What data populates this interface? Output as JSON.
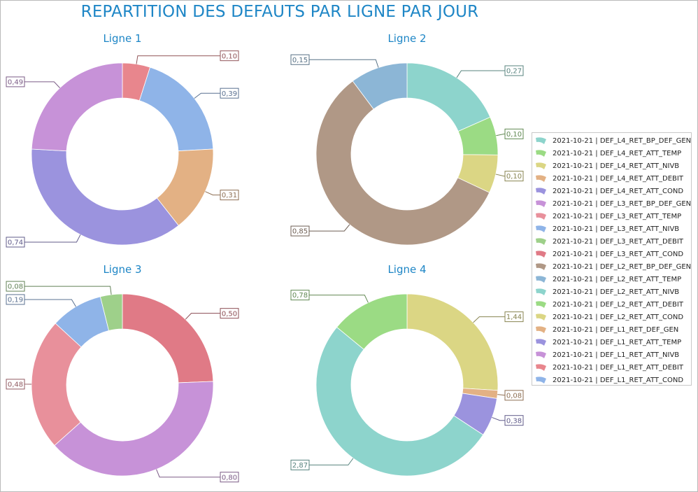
{
  "title": "REPARTITION DES DEFAUTS PAR LIGNE PAR JOUR",
  "chart_data": [
    {
      "type": "pie",
      "donut": true,
      "title": "Ligne 1",
      "start": "top",
      "direction": "clockwise",
      "slices": [
        {
          "label": "2021-10-21 | DEF_L1_RET_ATT_DEBIT",
          "value": 0.1,
          "display": "0,10",
          "color": "#e8868d"
        },
        {
          "label": "2021-10-21 | DEF_L1_RET_ATT_COND",
          "value": 0.39,
          "display": "0,39",
          "color": "#8fb4e8"
        },
        {
          "label": "2021-10-21 | DEF_L1_RET_DEF_GEN",
          "value": 0.31,
          "display": "0,31",
          "color": "#e3b184"
        },
        {
          "label": "2021-10-21 | DEF_L1_RET_ATT_TEMP",
          "value": 0.74,
          "display": "0,74",
          "color": "#9b93de"
        },
        {
          "label": "2021-10-21 | DEF_L1_RET_ATT_NIVB",
          "value": 0.49,
          "display": "0,49",
          "color": "#c792d8"
        }
      ]
    },
    {
      "type": "pie",
      "donut": true,
      "title": "Ligne 2",
      "start": "top",
      "direction": "clockwise",
      "slices": [
        {
          "label": "2021-10-21 | DEF_L2_RET_ATT_NIVB",
          "value": 0.27,
          "display": "0,27",
          "color": "#8dd4cc"
        },
        {
          "label": "2021-10-21 | DEF_L2_RET_ATT_DEBIT",
          "value": 0.1,
          "display": "0,10",
          "color": "#9bdb84"
        },
        {
          "label": "2021-10-21 | DEF_L2_RET_ATT_COND",
          "value": 0.1,
          "display": "0,10",
          "color": "#dbd684"
        },
        {
          "label": "2021-10-21 | DEF_L2_RET_BP_DEF_GEN",
          "value": 0.85,
          "display": "0,85",
          "color": "#b09886"
        },
        {
          "label": "2021-10-21 | DEF_L2_RET_ATT_TEMP",
          "value": 0.15,
          "display": "0,15",
          "color": "#8cb6d6"
        }
      ]
    },
    {
      "type": "pie",
      "donut": true,
      "title": "Ligne 3",
      "start": "top",
      "direction": "clockwise",
      "slices": [
        {
          "label": "2021-10-21 | DEF_L3_RET_ATT_COND",
          "value": 0.5,
          "display": "0,50",
          "color": "#e07a86"
        },
        {
          "label": "2021-10-21 | DEF_L3_RET_BP_DEF_GEN",
          "value": 0.8,
          "display": "0,80",
          "color": "#c792d8"
        },
        {
          "label": "2021-10-21 | DEF_L3_RET_ATT_TEMP",
          "value": 0.48,
          "display": "0,48",
          "color": "#e8909b"
        },
        {
          "label": "2021-10-21 | DEF_L3_RET_ATT_NIVB",
          "value": 0.19,
          "display": "0,19",
          "color": "#8fb4e8"
        },
        {
          "label": "2021-10-21 | DEF_L3_RET_ATT_DEBIT",
          "value": 0.08,
          "display": "0,08",
          "color": "#9ed08a"
        }
      ]
    },
    {
      "type": "pie",
      "donut": true,
      "title": "Ligne 4",
      "start": "top",
      "direction": "clockwise",
      "slices": [
        {
          "label": "2021-10-21 | DEF_L4_RET_ATT_NIVB",
          "value": 1.44,
          "display": "1,44",
          "color": "#dbd684"
        },
        {
          "label": "2021-10-21 | DEF_L4_RET_ATT_DEBIT",
          "value": 0.08,
          "display": "0,08",
          "color": "#e3b184"
        },
        {
          "label": "2021-10-21 | DEF_L4_RET_ATT_COND",
          "value": 0.38,
          "display": "0,38",
          "color": "#9b93de"
        },
        {
          "label": "2021-10-21 | DEF_L4_RET_BP_DEF_GEN",
          "value": 2.87,
          "display": "2,87",
          "color": "#8dd4cc"
        },
        {
          "label": "2021-10-21 | DEF_L4_RET_ATT_TEMP",
          "value": 0.78,
          "display": "0,78",
          "color": "#9bdb84"
        }
      ]
    }
  ],
  "legend": {
    "placement": "right",
    "items": [
      {
        "label": "2021-10-21 | DEF_L4_RET_BP_DEF_GEN",
        "color": "#8dd4cc"
      },
      {
        "label": "2021-10-21 | DEF_L4_RET_ATT_TEMP",
        "color": "#9bdb84"
      },
      {
        "label": "2021-10-21 | DEF_L4_RET_ATT_NIVB",
        "color": "#dbd684"
      },
      {
        "label": "2021-10-21 | DEF_L4_RET_ATT_DEBIT",
        "color": "#e3b184"
      },
      {
        "label": "2021-10-21 | DEF_L4_RET_ATT_COND",
        "color": "#9b93de"
      },
      {
        "label": "2021-10-21 | DEF_L3_RET_BP_DEF_GEN",
        "color": "#c792d8"
      },
      {
        "label": "2021-10-21 | DEF_L3_RET_ATT_TEMP",
        "color": "#e8909b"
      },
      {
        "label": "2021-10-21 | DEF_L3_RET_ATT_NIVB",
        "color": "#8fb4e8"
      },
      {
        "label": "2021-10-21 | DEF_L3_RET_ATT_DEBIT",
        "color": "#9ed08a"
      },
      {
        "label": "2021-10-21 | DEF_L3_RET_ATT_COND",
        "color": "#e07a86"
      },
      {
        "label": "2021-10-21 | DEF_L2_RET_BP_DEF_GEN",
        "color": "#b09886"
      },
      {
        "label": "2021-10-21 | DEF_L2_RET_ATT_TEMP",
        "color": "#8cb6d6"
      },
      {
        "label": "2021-10-21 | DEF_L2_RET_ATT_NIVB",
        "color": "#8dd4cc"
      },
      {
        "label": "2021-10-21 | DEF_L2_RET_ATT_DEBIT",
        "color": "#9bdb84"
      },
      {
        "label": "2021-10-21 | DEF_L2_RET_ATT_COND",
        "color": "#dbd684"
      },
      {
        "label": "2021-10-21 | DEF_L1_RET_DEF_GEN",
        "color": "#e3b184"
      },
      {
        "label": "2021-10-21 | DEF_L1_RET_ATT_TEMP",
        "color": "#9b93de"
      },
      {
        "label": "2021-10-21 | DEF_L1_RET_ATT_NIVB",
        "color": "#c792d8"
      },
      {
        "label": "2021-10-21 | DEF_L1_RET_ATT_DEBIT",
        "color": "#e8868d"
      },
      {
        "label": "2021-10-21 | DEF_L1_RET_ATT_COND",
        "color": "#8fb4e8"
      }
    ]
  }
}
